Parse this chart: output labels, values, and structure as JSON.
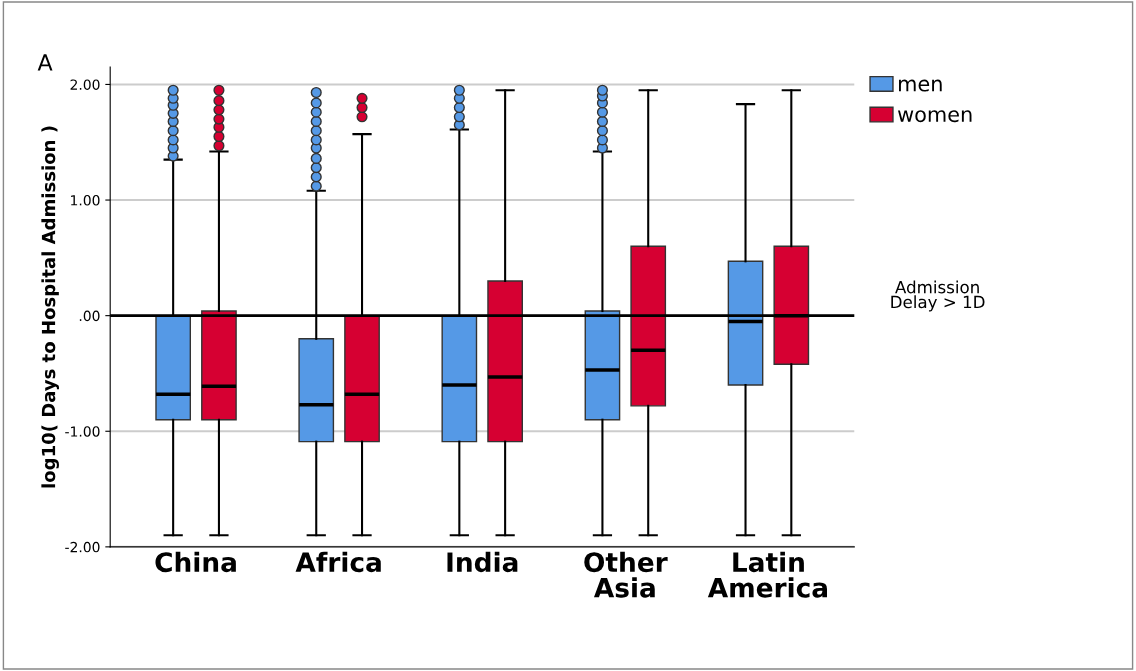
{
  "chart_data": {
    "type": "box",
    "title": "A",
    "ylabel": "log10( Days to Hospital Admission )",
    "categories": [
      "China",
      "Africa",
      "India",
      "Other Asia",
      "Latin America"
    ],
    "series": [
      {
        "name": "men",
        "color": "#5599e6",
        "boxes": [
          {
            "low": -1.9,
            "q1": -0.9,
            "median": -0.68,
            "q3": 0.0,
            "high": 1.35,
            "outliers": [
              1.38,
              1.45,
              1.52,
              1.6,
              1.68,
              1.75,
              1.82,
              1.88,
              1.95
            ]
          },
          {
            "low": -1.9,
            "q1": -1.09,
            "median": -0.77,
            "q3": -0.2,
            "high": 1.08,
            "outliers": [
              1.12,
              1.2,
              1.28,
              1.36,
              1.45,
              1.52,
              1.6,
              1.68,
              1.76,
              1.84,
              1.93
            ]
          },
          {
            "low": -1.9,
            "q1": -1.09,
            "median": -0.6,
            "q3": 0.0,
            "high": 1.61,
            "outliers": [
              1.65,
              1.72,
              1.8,
              1.88,
              1.95
            ]
          },
          {
            "low": -1.9,
            "q1": -0.9,
            "median": -0.47,
            "q3": 0.04,
            "high": 1.42,
            "outliers": [
              1.45,
              1.52,
              1.6,
              1.68,
              1.76,
              1.84,
              1.9,
              1.95
            ]
          },
          {
            "low": -1.9,
            "q1": -0.6,
            "median": -0.05,
            "q3": 0.47,
            "high": 1.83
          }
        ]
      },
      {
        "name": "women",
        "color": "#d60032",
        "boxes": [
          {
            "low": -1.9,
            "q1": -0.9,
            "median": -0.61,
            "q3": 0.04,
            "high": 1.42,
            "outliers": [
              1.47,
              1.55,
              1.63,
              1.7,
              1.78,
              1.86,
              1.95
            ]
          },
          {
            "low": -1.9,
            "q1": -1.09,
            "median": -0.68,
            "q3": 0.0,
            "high": 1.57,
            "outliers": [
              1.72,
              1.8,
              1.88
            ]
          },
          {
            "low": -1.9,
            "q1": -1.09,
            "median": -0.53,
            "q3": 0.3,
            "high": 1.95
          },
          {
            "low": -1.9,
            "q1": -0.78,
            "median": -0.3,
            "q3": 0.6,
            "high": 1.95
          },
          {
            "low": -1.9,
            "q1": -0.42,
            "median": 0.0,
            "q3": 0.6,
            "high": 1.95
          }
        ]
      }
    ],
    "ylim": [
      -2,
      2.15
    ],
    "yticks": [
      {
        "value": 2,
        "label": "2.00"
      },
      {
        "value": 1,
        "label": "1.00"
      },
      {
        "value": 0,
        "label": ".00"
      },
      {
        "value": -1,
        "label": "-1.00"
      },
      {
        "value": -2,
        "label": "-2.00"
      }
    ],
    "ref_lines": [
      {
        "axis": "y",
        "value": 0,
        "label": "Admission\nDelay > 1D",
        "color": "#000000",
        "line_style": "solid"
      }
    ],
    "grid": "y",
    "legend": "top right"
  }
}
